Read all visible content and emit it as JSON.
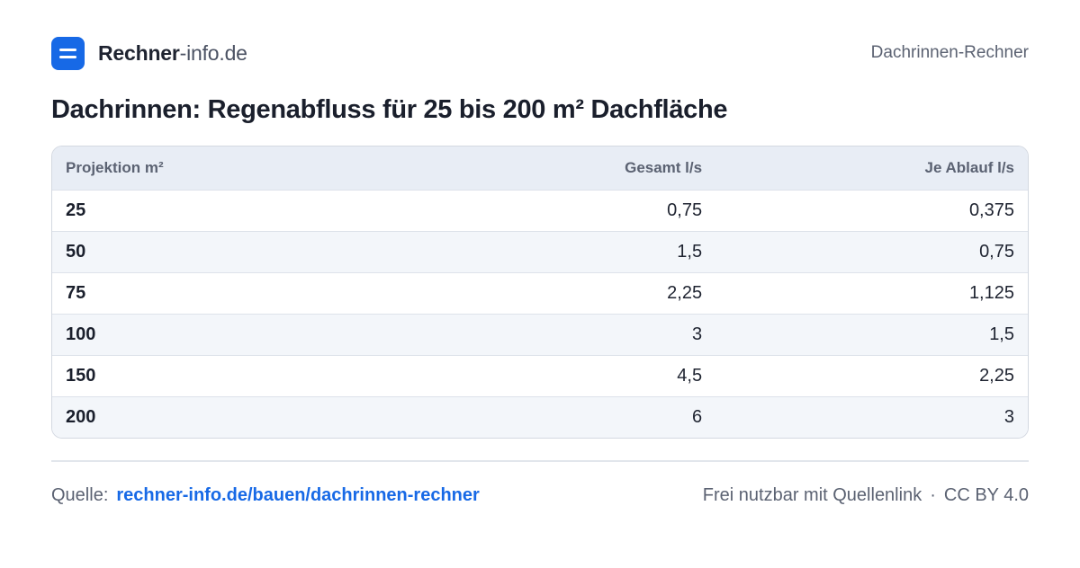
{
  "header": {
    "brand_strong": "Rechner",
    "brand_light": "-info.de",
    "logo_icon": "menu-lines-icon",
    "right_label": "Dachrinnen-Rechner"
  },
  "title": "Dachrinnen: Regenabfluss für 25 bis 200 m² Dachfläche",
  "table": {
    "headers": [
      "Projektion m²",
      "Gesamt l/s",
      "Je Ablauf l/s"
    ],
    "rows": [
      [
        "25",
        "0,75",
        "0,375"
      ],
      [
        "50",
        "1,5",
        "0,75"
      ],
      [
        "75",
        "2,25",
        "1,125"
      ],
      [
        "100",
        "3",
        "1,5"
      ],
      [
        "150",
        "4,5",
        "2,25"
      ],
      [
        "200",
        "6",
        "3"
      ]
    ]
  },
  "footer": {
    "source_label": "Quelle:",
    "source_link": "rechner-info.de/bauen/dachrinnen-rechner",
    "license_text": "Frei nutzbar mit Quellenlink",
    "separator": "·",
    "license": "CC BY 4.0"
  },
  "colors": {
    "accent": "#1769e6",
    "header_row_bg": "#e8edf5",
    "stripe_bg": "#f3f6fa"
  }
}
